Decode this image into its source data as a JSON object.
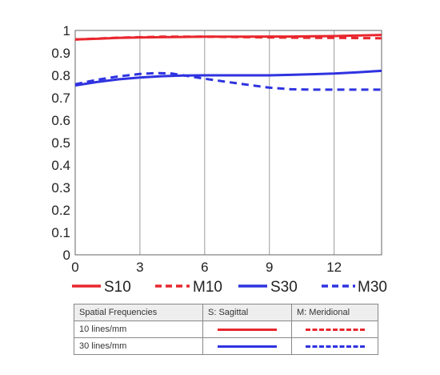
{
  "chart_data": {
    "type": "line",
    "title": "",
    "xlabel": "",
    "ylabel": "",
    "xlim": [
      0,
      14.2
    ],
    "ylim": [
      0,
      1
    ],
    "x_ticks": [
      "0",
      "3",
      "6",
      "9",
      "12"
    ],
    "y_ticks": [
      "0",
      "0.1",
      "0.2",
      "0.3",
      "0.4",
      "0.5",
      "0.6",
      "0.7",
      "0.8",
      "0.9",
      "1"
    ],
    "grid": "vertical",
    "legend_position": "bottom",
    "series": [
      {
        "name": "S10",
        "color": "#e8272e",
        "style": "solid",
        "x": [
          0,
          1,
          2,
          3,
          4,
          5,
          6,
          7,
          8,
          9,
          10,
          11,
          12,
          13,
          14.2
        ],
        "y": [
          0.96,
          0.963,
          0.967,
          0.969,
          0.97,
          0.971,
          0.972,
          0.972,
          0.972,
          0.973,
          0.973,
          0.974,
          0.975,
          0.977,
          0.98
        ]
      },
      {
        "name": "M10",
        "color": "#e8272e",
        "style": "dashed",
        "x": [
          0,
          1,
          2,
          3,
          4,
          5,
          6,
          7,
          8,
          9,
          10,
          11,
          12,
          13,
          14.2
        ],
        "y": [
          0.96,
          0.964,
          0.968,
          0.97,
          0.972,
          0.972,
          0.972,
          0.971,
          0.97,
          0.969,
          0.968,
          0.967,
          0.967,
          0.966,
          0.965
        ]
      },
      {
        "name": "S30",
        "color": "#2f33e0",
        "style": "solid",
        "x": [
          0,
          1,
          2,
          3,
          4,
          5,
          6,
          7,
          8,
          9,
          10,
          11,
          12,
          13,
          14.2
        ],
        "y": [
          0.755,
          0.77,
          0.782,
          0.79,
          0.796,
          0.799,
          0.8,
          0.8,
          0.8,
          0.8,
          0.802,
          0.805,
          0.808,
          0.813,
          0.82
        ]
      },
      {
        "name": "M30",
        "color": "#2f33e0",
        "style": "dashed",
        "x": [
          0,
          1,
          2,
          3,
          3.8,
          4.5,
          5,
          6,
          7,
          8,
          9,
          10,
          11,
          12,
          13,
          14.2
        ],
        "y": [
          0.76,
          0.78,
          0.795,
          0.806,
          0.81,
          0.808,
          0.8,
          0.785,
          0.771,
          0.758,
          0.745,
          0.738,
          0.736,
          0.736,
          0.736,
          0.736
        ]
      }
    ]
  },
  "legend": {
    "s10": "S10",
    "m10": "M10",
    "s30": "S30",
    "m30": "M30"
  },
  "key_table": {
    "header": {
      "col1": "Spatial Frequencies",
      "col2": "S: Sagittal",
      "col3": "M: Meridional"
    },
    "rows": [
      {
        "label": "10 lines/mm",
        "color": "#e8272e"
      },
      {
        "label": "30 lines/mm",
        "color": "#2f33e0"
      }
    ]
  }
}
